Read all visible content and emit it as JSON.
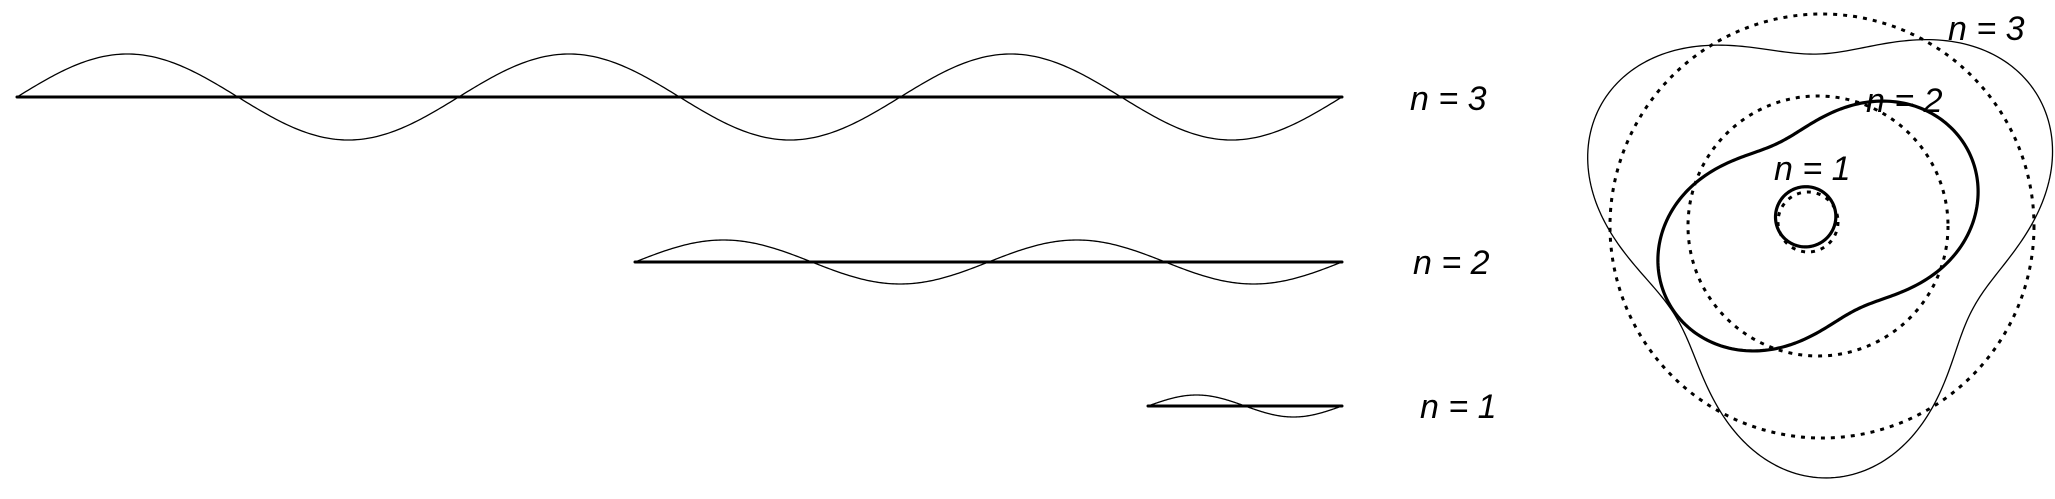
{
  "standing_waves": [
    {
      "label": "n = 3",
      "cycles": 3
    },
    {
      "label": "n = 2",
      "cycles": 2
    },
    {
      "label": "n = 1",
      "cycles": 1
    }
  ],
  "orbits": {
    "labels": [
      "n = 1",
      "n = 2",
      "n = 3"
    ]
  },
  "colors": {
    "stroke": "#000000",
    "background": "#ffffff"
  }
}
